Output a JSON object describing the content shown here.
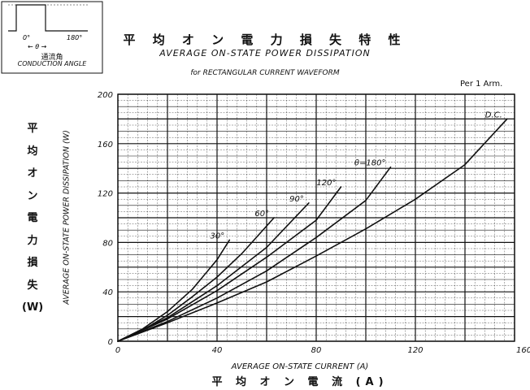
{
  "title_jp": "平 均 オ ン 電 力 損 失 特 性",
  "title_en": "AVERAGE ON-STATE POWER DISSIPATION",
  "subtitle": "for RECTANGULAR CURRENT WAVEFORM",
  "per_arm": "Per 1 Arm.",
  "y_label_jp": [
    "平",
    "均",
    "オ",
    "ン",
    "電",
    "力",
    "損",
    "失",
    "(W)"
  ],
  "inset": {
    "label_0": "0°",
    "label_180": "180°",
    "theta_label": "← θ →",
    "caption_jp": "通流角",
    "caption_en": "CONDUCTION ANGLE"
  },
  "chart_data": {
    "type": "line",
    "xlabel": "AVERAGE ON-STATE CURRENT (A)",
    "xlabel_jp": "平 均 オ ン 電 流 (A)",
    "ylabel": "AVERAGE ON-STATE POWER DISSIPATION (W)",
    "xlim": [
      0,
      160
    ],
    "ylim": [
      0,
      200
    ],
    "xticks": [
      0,
      40,
      80,
      120,
      160
    ],
    "yticks": [
      0,
      40,
      80,
      120,
      160,
      200
    ],
    "grid": true,
    "series": [
      {
        "name": "30°",
        "x": [
          0,
          10,
          20,
          30,
          40,
          45
        ],
        "y": [
          0,
          10,
          24,
          42,
          66,
          82
        ]
      },
      {
        "name": "60°",
        "x": [
          0,
          10,
          20,
          30,
          40,
          50,
          63
        ],
        "y": [
          0,
          9,
          21,
          36,
          52,
          71,
          100
        ]
      },
      {
        "name": "90°",
        "x": [
          0,
          20,
          40,
          60,
          77
        ],
        "y": [
          0,
          19,
          45,
          76,
          112
        ]
      },
      {
        "name": "120°",
        "x": [
          0,
          20,
          40,
          60,
          80,
          90
        ],
        "y": [
          0,
          18,
          41,
          68,
          98,
          125
        ]
      },
      {
        "name": "θ=180°",
        "x": [
          0,
          20,
          40,
          60,
          80,
          100,
          110
        ],
        "y": [
          0,
          16,
          35,
          57,
          84,
          114,
          141
        ]
      },
      {
        "name": "D.C.",
        "x": [
          0,
          20,
          40,
          60,
          80,
          100,
          120,
          140,
          157
        ],
        "y": [
          0,
          15,
          31,
          48,
          69,
          91,
          115,
          143,
          180
        ]
      }
    ]
  }
}
